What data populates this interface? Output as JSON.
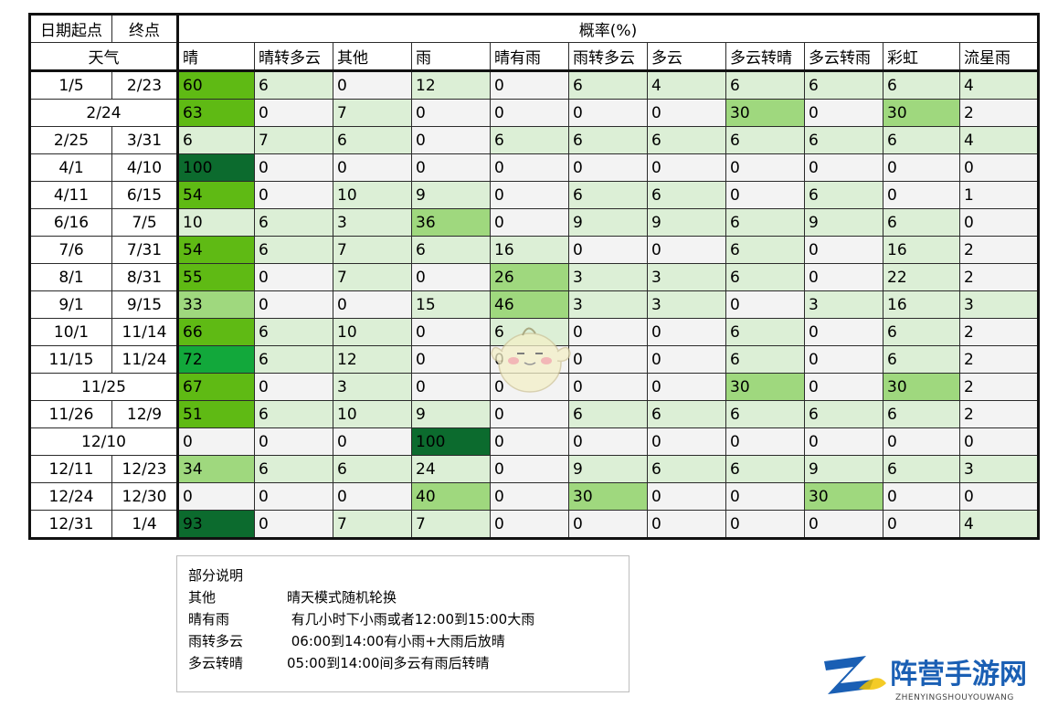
{
  "table": {
    "header": {
      "start_label": "日期起点",
      "end_label": "终点",
      "prob_label": "概率(%)",
      "weather_label": "天气",
      "columns": [
        "晴",
        "晴转多云",
        "其他",
        "雨",
        "晴有雨",
        "雨转多云",
        "多云",
        "多云转晴",
        "多云转雨",
        "彩虹",
        "流星雨"
      ]
    },
    "rows": [
      {
        "start": "1/5",
        "end": "2/23",
        "merged": false,
        "values": [
          "60",
          "6",
          "0",
          "12",
          "0",
          "6",
          "4",
          "6",
          "6",
          "6",
          "4"
        ]
      },
      {
        "start": "2/24",
        "end": "",
        "merged": true,
        "values": [
          "63",
          "0",
          "7",
          "0",
          "0",
          "0",
          "0",
          "30",
          "0",
          "30",
          "2"
        ]
      },
      {
        "start": "2/25",
        "end": "3/31",
        "merged": false,
        "values": [
          "6",
          "7",
          "6",
          "0",
          "6",
          "6",
          "6",
          "6",
          "6",
          "6",
          "4"
        ]
      },
      {
        "start": "4/1",
        "end": "4/10",
        "merged": false,
        "values": [
          "100",
          "0",
          "0",
          "0",
          "0",
          "0",
          "0",
          "0",
          "0",
          "0",
          "0"
        ]
      },
      {
        "start": "4/11",
        "end": "6/15",
        "merged": false,
        "values": [
          "54",
          "0",
          "10",
          "9",
          "0",
          "6",
          "6",
          "0",
          "6",
          "0",
          "1"
        ]
      },
      {
        "start": "6/16",
        "end": "7/5",
        "merged": false,
        "values": [
          "10",
          "6",
          "3",
          "36",
          "0",
          "9",
          "9",
          "6",
          "9",
          "6",
          "0"
        ]
      },
      {
        "start": "7/6",
        "end": "7/31",
        "merged": false,
        "values": [
          "54",
          "6",
          "7",
          "6",
          "16",
          "0",
          "0",
          "6",
          "0",
          "16",
          "2"
        ]
      },
      {
        "start": "8/1",
        "end": "8/31",
        "merged": false,
        "values": [
          "55",
          "0",
          "7",
          "0",
          "26",
          "3",
          "3",
          "6",
          "0",
          "22",
          "2"
        ]
      },
      {
        "start": "9/1",
        "end": "9/15",
        "merged": false,
        "values": [
          "33",
          "0",
          "0",
          "15",
          "46",
          "3",
          "3",
          "0",
          "3",
          "16",
          "3"
        ]
      },
      {
        "start": "10/1",
        "end": "11/14",
        "merged": false,
        "values": [
          "66",
          "6",
          "10",
          "0",
          "6",
          "0",
          "0",
          "6",
          "0",
          "6",
          "2"
        ]
      },
      {
        "start": "11/15",
        "end": "11/24",
        "merged": false,
        "values": [
          "72",
          "6",
          "12",
          "0",
          "0",
          "0",
          "0",
          "6",
          "0",
          "6",
          "2"
        ]
      },
      {
        "start": "11/25",
        "end": "",
        "merged": true,
        "values": [
          "67",
          "0",
          "3",
          "0",
          "0",
          "0",
          "0",
          "30",
          "0",
          "30",
          "2"
        ]
      },
      {
        "start": "11/26",
        "end": "12/9",
        "merged": false,
        "values": [
          "51",
          "6",
          "10",
          "9",
          "0",
          "6",
          "6",
          "6",
          "6",
          "6",
          "2"
        ]
      },
      {
        "start": "12/10",
        "end": "",
        "merged": true,
        "values": [
          "0",
          "0",
          "0",
          "100",
          "0",
          "0",
          "0",
          "0",
          "0",
          "0",
          "0"
        ]
      },
      {
        "start": "12/11",
        "end": "12/23",
        "merged": false,
        "values": [
          "34",
          "6",
          "6",
          "24",
          "0",
          "9",
          "6",
          "6",
          "9",
          "6",
          "3"
        ]
      },
      {
        "start": "12/24",
        "end": "12/30",
        "merged": false,
        "values": [
          "0",
          "0",
          "0",
          "40",
          "0",
          "30",
          "0",
          "0",
          "30",
          "0",
          "0"
        ]
      },
      {
        "start": "12/31",
        "end": "1/4",
        "merged": false,
        "values": [
          "93",
          "0",
          "7",
          "7",
          "0",
          "0",
          "0",
          "0",
          "0",
          "0",
          "4"
        ]
      }
    ]
  },
  "notes": {
    "title": "部分说明",
    "items": [
      {
        "key": "其他",
        "desc": "晴天模式随机轮换"
      },
      {
        "key": "晴有雨",
        "desc": " 有几小时下小雨或者12:00到15:00大雨"
      },
      {
        "key": "雨转多云",
        "desc": " 06:00到14:00有小雨+大雨后放晴"
      },
      {
        "key": "多云转晴",
        "desc": "05:00到14:00间多云有雨后转晴"
      }
    ]
  },
  "watermark": {
    "site_name": "阵营手游网",
    "site_pinyin": "ZHENYINGSHOUYOUWANG"
  },
  "colors": {
    "cell_default": "#f3f3f3",
    "green_low": "#dcefd6",
    "green_mid": "#9fd87e",
    "green_high": "#5fba14",
    "green_max": "#0c6b2e",
    "green_bright": "#12a83b",
    "logo_blue": "#1a5fb4"
  }
}
